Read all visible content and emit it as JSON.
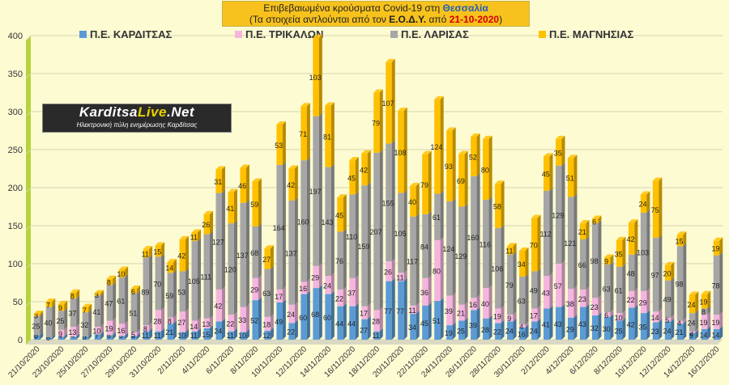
{
  "title": {
    "line1_prefix": "Επιβεβαιωμένα κρούσματα Covid-19 στη ",
    "line1_region": "Θεσσαλία",
    "line2_prefix": "(Τα στοιχεία αντλούνται από τον ",
    "line2_source": "Ε.Ο.Δ.Υ.",
    "line2_mid": " από ",
    "line2_date": "21-10-2020",
    "line2_suffix": ")"
  },
  "logo": {
    "name_part1": "Karditsa",
    "name_part2": "Live",
    "name_part3": ".Net",
    "tagline": "Ηλεκτρονική πύλη ενημέρωσης Καρδίτσας"
  },
  "colors": {
    "karditsa": "#5b9bd5",
    "trikala": "#f4b6df",
    "larisa": "#a6a6a6",
    "magnisia": "#ffc000"
  },
  "chart_data": {
    "type": "bar",
    "stacked": true,
    "ylim": [
      0,
      400
    ],
    "yticks": [
      0,
      50,
      100,
      150,
      200,
      250,
      300,
      350,
      400
    ],
    "grid": true,
    "legend_position": "top",
    "categories": [
      "21/10/2020",
      "22/10/2020",
      "23/10/2020",
      "24/10/2020",
      "25/10/2020",
      "26/10/2020",
      "27/10/2020",
      "28/10/2020",
      "29/10/2020",
      "30/10/2020",
      "31/10/2020",
      "1/11/2020",
      "2/11/2020",
      "3/11/2020",
      "4/11/2020",
      "5/11/2020",
      "6/11/2020",
      "7/11/2020",
      "8/11/2020",
      "9/11/2020",
      "10/11/2020",
      "11/11/2020",
      "12/11/2020",
      "13/11/2020",
      "14/11/2020",
      "15/11/2020",
      "16/11/2020",
      "17/11/2020",
      "18/11/2020",
      "19/11/2020",
      "20/11/2020",
      "21/11/2020",
      "22/11/2020",
      "23/11/2020",
      "24/11/2020",
      "25/11/2020",
      "26/11/2020",
      "27/11/2020",
      "28/11/2020",
      "29/11/2020",
      "30/11/2020",
      "1/12/2020",
      "2/12/2020",
      "3/12/2020",
      "4/12/2020",
      "5/12/2020",
      "6/12/2020",
      "7/12/2020",
      "8/12/2020",
      "9/12/2020",
      "10/12/2020",
      "11/12/2020",
      "12/12/2020",
      "13/12/2020",
      "14/12/2020",
      "15/12/2020",
      "16/12/2020"
    ],
    "x_tick_labels": [
      "21/10/2020",
      "",
      "23/10/2020",
      "",
      "25/10/2020",
      "",
      "27/10/2020",
      "",
      "29/10/2020",
      "",
      "31/10/2020",
      "",
      "2/11/2020",
      "",
      "4/11/2020",
      "",
      "6/11/2020",
      "",
      "8/11/2020",
      "",
      "10/11/2020",
      "",
      "12/11/2020",
      "",
      "14/11/2020",
      "",
      "16/11/2020",
      "",
      "18/11/2020",
      "",
      "20/11/2020",
      "",
      "22/11/2020",
      "",
      "24/11/2020",
      "",
      "26/11/2020",
      "",
      "28/11/2020",
      "",
      "30/11/2020",
      "",
      "2/12/2020",
      "",
      "4/12/2020",
      "",
      "6/12/2020",
      "",
      "8/12/2020",
      "",
      "10/12/2020",
      "",
      "12/12/2020",
      "",
      "14/12/2020",
      "",
      "16/12/2020"
    ],
    "series": [
      {
        "name": "Π.Ε. ΚΑΡΔΙΤΣΑΣ",
        "values": [
          6,
          3,
          4,
          4,
          4,
          7,
          6,
          5,
          5,
          11,
          11,
          21,
          10,
          11,
          15,
          24,
          11,
          10,
          52,
          12,
          49,
          22,
          60,
          68,
          60,
          44,
          44,
          27,
          11,
          77,
          77,
          34,
          45,
          51,
          19,
          25,
          39,
          28,
          22,
          24,
          16,
          24,
          41,
          43,
          29,
          43,
          32,
          30,
          25,
          42,
          35,
          23,
          24,
          21,
          9,
          14,
          14
        ]
      },
      {
        "name": "Π.Ε. ΤΡΙΚΑΛΩΝ",
        "values": [
          0,
          0,
          9,
          13,
          0,
          10,
          19,
          16,
          5,
          8,
          28,
          8,
          27,
          14,
          13,
          42,
          22,
          33,
          29,
          18,
          17,
          24,
          16,
          29,
          24,
          22,
          37,
          17,
          28,
          26,
          11,
          11,
          36,
          80,
          39,
          21,
          16,
          40,
          19,
          9,
          4,
          17,
          43,
          57,
          38,
          23,
          23,
          6,
          10,
          22,
          29,
          14,
          5,
          4,
          2,
          19,
          19
        ]
      },
      {
        "name": "Π.Ε. ΛΑΡΙΣΑΣ",
        "values": [
          25,
          40,
          25,
          37,
          32,
          41,
          47,
          61,
          51,
          89,
          70,
          59,
          53,
          105,
          111,
          127,
          120,
          137,
          68,
          63,
          164,
          137,
          160,
          197,
          143,
          76,
          110,
          159,
          207,
          155,
          105,
          117,
          84,
          61,
          124,
          129,
          160,
          116,
          106,
          79,
          63,
          49,
          112,
          129,
          121,
          66,
          98,
          63,
          61,
          48,
          103,
          97,
          49,
          98,
          24,
          8,
          78
        ]
      },
      {
        "name": "Π.Ε. ΜΑΓΝΗΣΙΑΣ",
        "values": [
          3,
          7,
          9,
          8,
          7,
          3,
          8,
          10,
          6,
          11,
          15,
          14,
          42,
          11,
          26,
          31,
          41,
          46,
          59,
          27,
          53,
          42,
          71,
          103,
          81,
          45,
          45,
          42,
          79,
          107,
          108,
          40,
          79,
          124,
          93,
          69,
          52,
          80,
          58,
          11,
          34,
          70,
          45,
          35,
          51,
          21,
          6,
          9,
          35,
          42,
          24,
          75,
          20,
          15,
          24,
          19,
          19
        ]
      }
    ]
  }
}
